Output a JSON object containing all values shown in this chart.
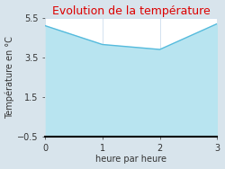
{
  "title": "Evolution de la température",
  "xlabel": "heure par heure",
  "ylabel": "Température en °C",
  "x": [
    0,
    1,
    2,
    3
  ],
  "y": [
    5.1,
    4.15,
    3.9,
    5.2
  ],
  "ylim": [
    -0.5,
    5.5
  ],
  "xlim": [
    0,
    3
  ],
  "yticks": [
    -0.5,
    1.5,
    3.5,
    5.5
  ],
  "xticks": [
    0,
    1,
    2,
    3
  ],
  "fill_color": "#b8e4f0",
  "line_color": "#55bbdd",
  "title_color": "#dd0000",
  "bg_color": "#d8e4ec",
  "plot_bg_color": "#ffffff",
  "grid_color": "#ccddee",
  "axis_color": "#000000",
  "title_fontsize": 9,
  "label_fontsize": 7,
  "tick_fontsize": 7
}
